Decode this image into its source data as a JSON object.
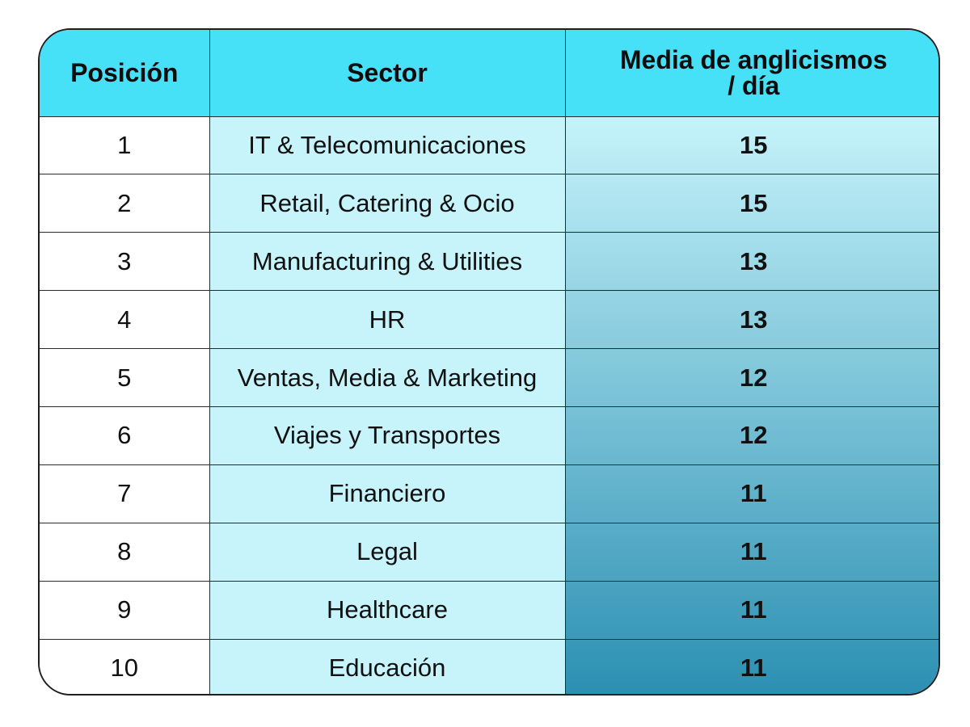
{
  "headers": {
    "position": "Posición",
    "sector": "Sector",
    "media_line1": "Media de anglicismos",
    "media_line2": "/ día"
  },
  "colors": {
    "header_bg": "#46e0f7",
    "sector_bg": "#c7f4fa",
    "gradient_top": "#c5f3fa",
    "gradient_bottom": "#2b8fb2"
  },
  "chart_data": {
    "type": "table",
    "columns": [
      "Posición",
      "Sector",
      "Media de anglicismos / día"
    ],
    "rows": [
      {
        "position": "1",
        "sector": "IT & Telecomunicaciones",
        "value": 15
      },
      {
        "position": "2",
        "sector": "Retail, Catering & Ocio",
        "value": 15
      },
      {
        "position": "3",
        "sector": "Manufacturing & Utilities",
        "value": 13
      },
      {
        "position": "4",
        "sector": "HR",
        "value": 13
      },
      {
        "position": "5",
        "sector": "Ventas, Media & Marketing",
        "value": 12
      },
      {
        "position": "6",
        "sector": "Viajes y Transportes",
        "value": 12
      },
      {
        "position": "7",
        "sector": "Financiero",
        "value": 11
      },
      {
        "position": "8",
        "sector": "Legal",
        "value": 11
      },
      {
        "position": "9",
        "sector": "Healthcare",
        "value": 11
      },
      {
        "position": "10",
        "sector": "Educación",
        "value": 11
      }
    ]
  }
}
